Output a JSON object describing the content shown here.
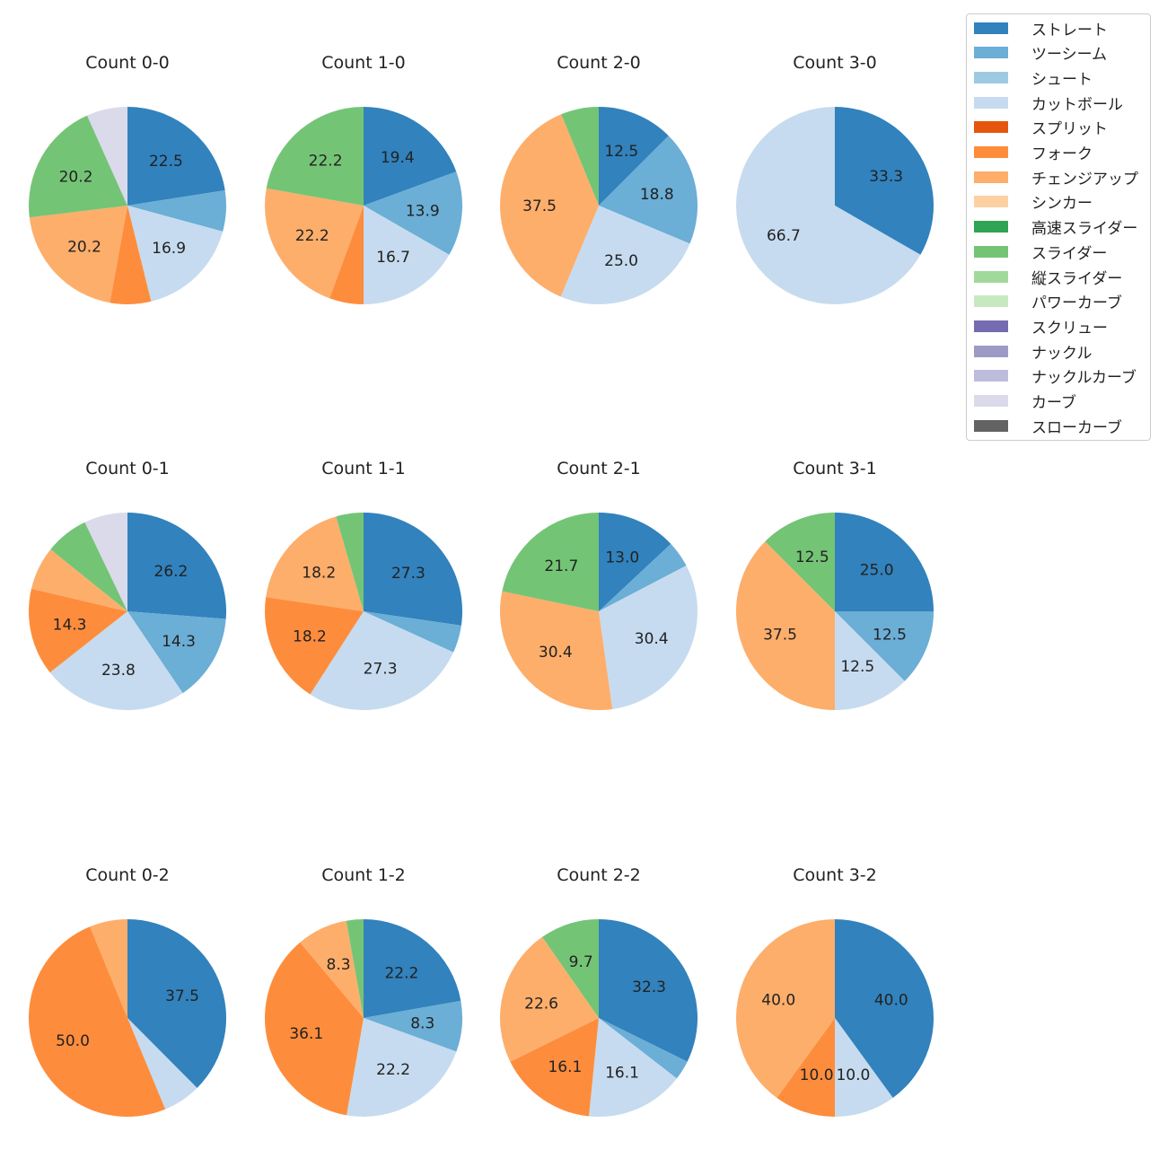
{
  "chart_data": {
    "type": "pie",
    "start_angle": 90,
    "direction": "clockwise",
    "label_format": "percent, 1 decimal; labels shown only on larger slices",
    "legend_position": "top-right",
    "categories": [
      "ストレート",
      "ツーシーム",
      "シュート",
      "カットボール",
      "スプリット",
      "フォーク",
      "チェンジアップ",
      "シンカー",
      "高速スライダー",
      "スライダー",
      "縦スライダー",
      "パワーカーブ",
      "スクリュー",
      "ナックル",
      "ナックルカーブ",
      "カーブ",
      "スローカーブ"
    ],
    "colors": [
      "#3182bd",
      "#6baed6",
      "#9ecae1",
      "#c6dbef",
      "#e6550d",
      "#fd8d3c",
      "#fdae6b",
      "#fdd0a2",
      "#31a354",
      "#74c476",
      "#a1d99b",
      "#c7e9c0",
      "#756bb1",
      "#9e9ac8",
      "#bcbddc",
      "#dadaeb",
      "#636363"
    ],
    "pies": [
      {
        "title": "Count 0-0",
        "slices": [
          [
            "ストレート",
            22.5
          ],
          [
            "ツーシーム",
            6.7
          ],
          [
            "カットボール",
            16.9
          ],
          [
            "フォーク",
            6.7
          ],
          [
            "チェンジアップ",
            20.2
          ],
          [
            "スライダー",
            20.2
          ],
          [
            "カーブ",
            6.7
          ]
        ]
      },
      {
        "title": "Count 1-0",
        "slices": [
          [
            "ストレート",
            19.4
          ],
          [
            "ツーシーム",
            13.9
          ],
          [
            "カットボール",
            16.7
          ],
          [
            "フォーク",
            5.6
          ],
          [
            "チェンジアップ",
            22.2
          ],
          [
            "スライダー",
            22.2
          ]
        ]
      },
      {
        "title": "Count 2-0",
        "slices": [
          [
            "ストレート",
            12.5
          ],
          [
            "ツーシーム",
            18.8
          ],
          [
            "カットボール",
            25.0
          ],
          [
            "チェンジアップ",
            37.5
          ],
          [
            "スライダー",
            6.2
          ]
        ]
      },
      {
        "title": "Count 3-0",
        "slices": [
          [
            "ストレート",
            33.3
          ],
          [
            "カットボール",
            66.7
          ]
        ]
      },
      {
        "title": "Count 0-1",
        "slices": [
          [
            "ストレート",
            26.2
          ],
          [
            "ツーシーム",
            14.3
          ],
          [
            "カットボール",
            23.8
          ],
          [
            "フォーク",
            14.3
          ],
          [
            "チェンジアップ",
            7.1
          ],
          [
            "スライダー",
            7.1
          ],
          [
            "カーブ",
            7.1
          ]
        ]
      },
      {
        "title": "Count 1-1",
        "slices": [
          [
            "ストレート",
            27.3
          ],
          [
            "ツーシーム",
            4.5
          ],
          [
            "カットボール",
            27.3
          ],
          [
            "フォーク",
            18.2
          ],
          [
            "チェンジアップ",
            18.2
          ],
          [
            "スライダー",
            4.5
          ]
        ]
      },
      {
        "title": "Count 2-1",
        "slices": [
          [
            "ストレート",
            13.0
          ],
          [
            "ツーシーム",
            4.3
          ],
          [
            "カットボール",
            30.4
          ],
          [
            "チェンジアップ",
            30.4
          ],
          [
            "スライダー",
            21.7
          ]
        ]
      },
      {
        "title": "Count 3-1",
        "slices": [
          [
            "ストレート",
            25.0
          ],
          [
            "ツーシーム",
            12.5
          ],
          [
            "カットボール",
            12.5
          ],
          [
            "チェンジアップ",
            37.5
          ],
          [
            "スライダー",
            12.5
          ]
        ]
      },
      {
        "title": "Count 0-2",
        "slices": [
          [
            "ストレート",
            37.5
          ],
          [
            "カットボール",
            6.2
          ],
          [
            "フォーク",
            50.0
          ],
          [
            "チェンジアップ",
            6.2
          ]
        ]
      },
      {
        "title": "Count 1-2",
        "slices": [
          [
            "ストレート",
            22.2
          ],
          [
            "ツーシーム",
            8.3
          ],
          [
            "カットボール",
            22.2
          ],
          [
            "フォーク",
            36.1
          ],
          [
            "チェンジアップ",
            8.3
          ],
          [
            "スライダー",
            2.8
          ]
        ]
      },
      {
        "title": "Count 2-2",
        "slices": [
          [
            "ストレート",
            32.3
          ],
          [
            "ツーシーム",
            3.2
          ],
          [
            "カットボール",
            16.1
          ],
          [
            "フォーク",
            16.1
          ],
          [
            "チェンジアップ",
            22.6
          ],
          [
            "スライダー",
            9.7
          ]
        ]
      },
      {
        "title": "Count 3-2",
        "slices": [
          [
            "ストレート",
            40.0
          ],
          [
            "カットボール",
            10.0
          ],
          [
            "フォーク",
            10.0
          ],
          [
            "チェンジアップ",
            40.0
          ]
        ]
      }
    ]
  }
}
